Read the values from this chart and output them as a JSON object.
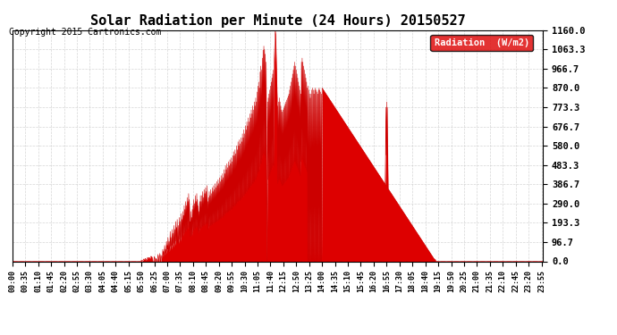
{
  "title": "Solar Radiation per Minute (24 Hours) 20150527",
  "copyright": "Copyright 2015 Cartronics.com",
  "legend_label": "Radiation  (W/m2)",
  "plot_bg_color": "#ffffff",
  "fill_color": "#dd0000",
  "line_color": "#cc0000",
  "dashed_line_color": "#ff0000",
  "grid_color": "#cccccc",
  "legend_bg": "#dd0000",
  "legend_text_color": "#ffffff",
  "ylim": [
    0.0,
    1160.0
  ],
  "yticks": [
    0.0,
    96.7,
    193.3,
    290.0,
    386.7,
    483.3,
    580.0,
    676.7,
    773.3,
    870.0,
    966.7,
    1063.3,
    1160.0
  ],
  "total_minutes": 1440,
  "xtick_labels": [
    "00:00",
    "00:35",
    "01:10",
    "01:45",
    "02:20",
    "02:55",
    "03:30",
    "04:05",
    "04:40",
    "05:15",
    "05:50",
    "06:25",
    "07:00",
    "07:35",
    "08:10",
    "08:45",
    "09:20",
    "09:55",
    "10:30",
    "11:05",
    "11:40",
    "12:15",
    "12:50",
    "13:25",
    "14:00",
    "14:35",
    "15:10",
    "15:45",
    "16:20",
    "16:55",
    "17:30",
    "18:05",
    "18:40",
    "19:15",
    "19:50",
    "20:25",
    "21:00",
    "21:35",
    "22:10",
    "22:45",
    "23:20",
    "23:55"
  ]
}
